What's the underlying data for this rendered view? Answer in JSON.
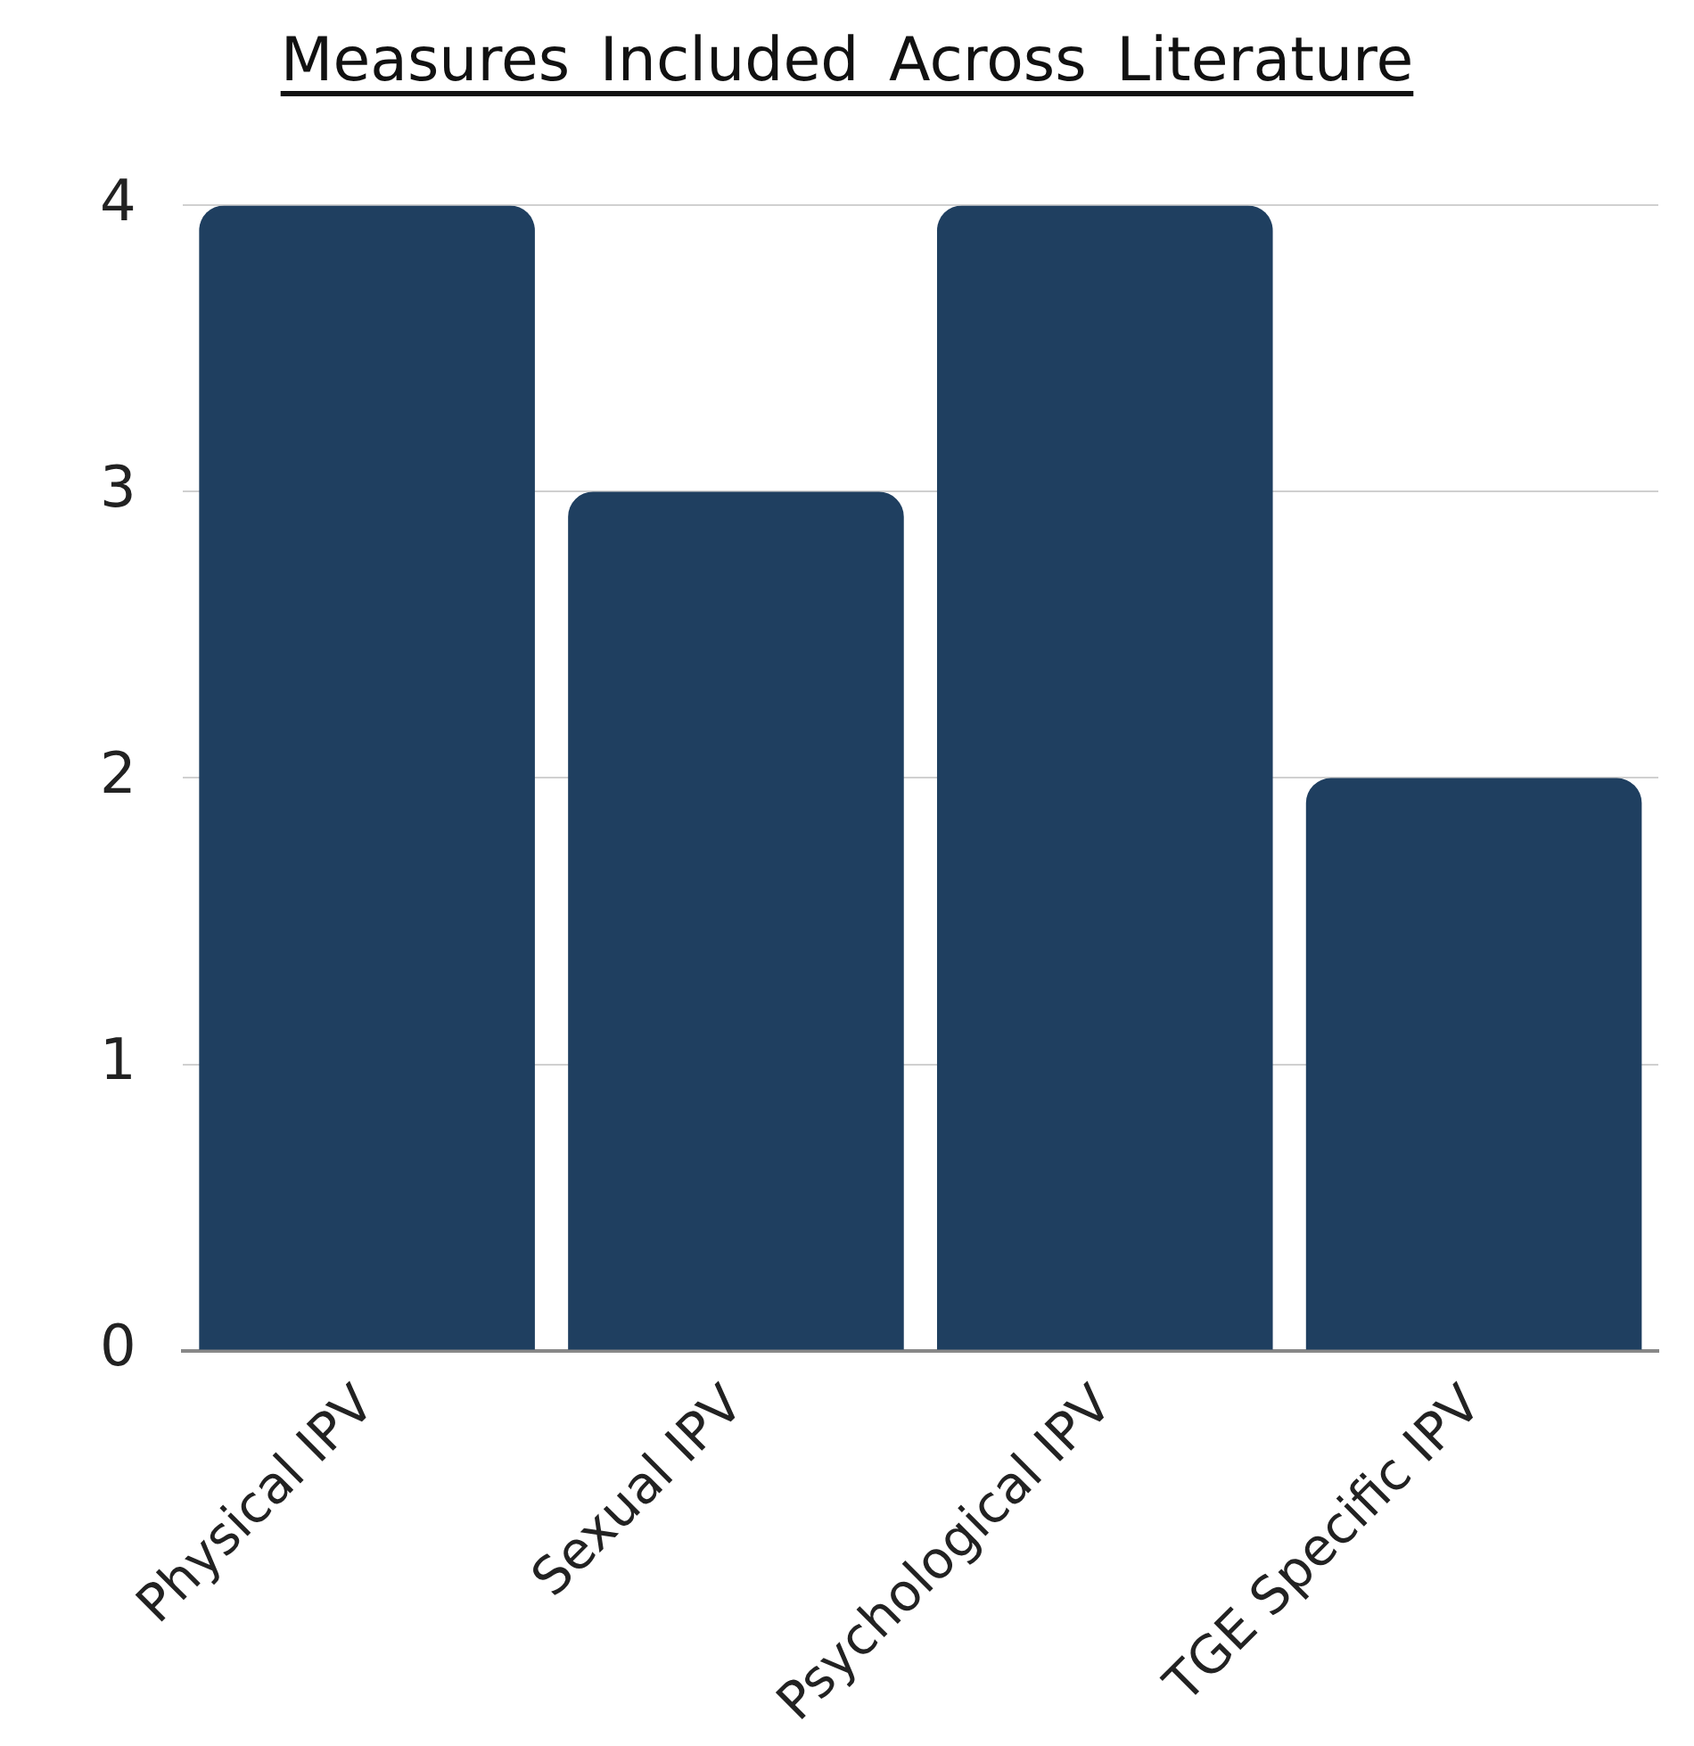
{
  "chart_data": {
    "type": "bar",
    "title": "Measures Included Across Literature",
    "categories": [
      "Physical IPV",
      "Sexual IPV",
      "Psychological IPV",
      "TGE Specific IPV"
    ],
    "values": [
      4,
      3,
      4,
      2
    ],
    "color": "#1f3f60",
    "ylim": [
      0,
      4
    ],
    "yticks": [
      0,
      1,
      2,
      3,
      4
    ],
    "grid": "y"
  }
}
